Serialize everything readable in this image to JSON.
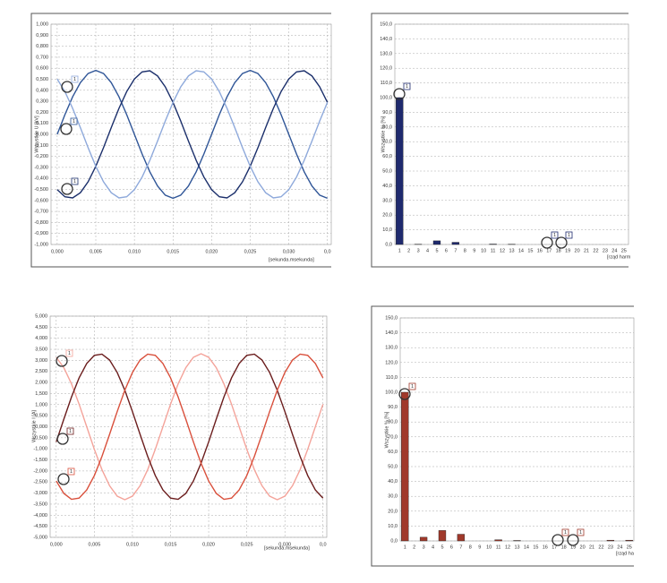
{
  "chart_data": [
    {
      "type": "line",
      "ylabel": "Wszystkie U [kV]",
      "xlabel": "[sekunda.msekunda]",
      "grid": true,
      "xlim": [
        -0.0008,
        0.0355
      ],
      "ylim": [
        -1,
        1
      ],
      "xticks": [
        {
          "value": 0,
          "label": "0,000"
        },
        {
          "value": 0.005,
          "label": "0,005"
        },
        {
          "value": 0.01,
          "label": "0,010"
        },
        {
          "value": 0.015,
          "label": "0,015"
        },
        {
          "value": 0.02,
          "label": "0,020"
        },
        {
          "value": 0.025,
          "label": "0,025"
        },
        {
          "value": 0.03,
          "label": "0,030"
        },
        {
          "value": 0.035,
          "label": "0,0"
        }
      ],
      "yticks": [
        {
          "value": 1,
          "label": "1,000"
        },
        {
          "value": 0.9,
          "label": "0,900"
        },
        {
          "value": 0.8,
          "label": "0,800"
        },
        {
          "value": 0.7,
          "label": "0,700"
        },
        {
          "value": 0.6,
          "label": "0,600"
        },
        {
          "value": 0.5,
          "label": "0,500"
        },
        {
          "value": 0.4,
          "label": "0,400"
        },
        {
          "value": 0.3,
          "label": "0,300"
        },
        {
          "value": 0.2,
          "label": "0,200"
        },
        {
          "value": 0.1,
          "label": "0,100"
        },
        {
          "value": 0,
          "label": "0,000"
        },
        {
          "value": -0.1,
          "label": "-0,100"
        },
        {
          "value": -0.2,
          "label": "-0,200"
        },
        {
          "value": -0.3,
          "label": "-0,300"
        },
        {
          "value": -0.4,
          "label": "-0,400"
        },
        {
          "value": -0.5,
          "label": "-0,500"
        },
        {
          "value": -0.6,
          "label": "-0,600"
        },
        {
          "value": -0.7,
          "label": "-0,700"
        },
        {
          "value": -0.8,
          "label": "-0,800"
        },
        {
          "value": -0.9,
          "label": "-0,900"
        },
        {
          "value": -1,
          "label": "-1,000"
        }
      ],
      "x": [
        0,
        0.001,
        0.002,
        0.003,
        0.004,
        0.005,
        0.006,
        0.007,
        0.008,
        0.009,
        0.01,
        0.011,
        0.012,
        0.013,
        0.014,
        0.015,
        0.016,
        0.017,
        0.018,
        0.019,
        0.02,
        0.021,
        0.022,
        0.023,
        0.024,
        0.025,
        0.026,
        0.027,
        0.028,
        0.029,
        0.03,
        0.031,
        0.032,
        0.033,
        0.034,
        0.035
      ],
      "series": [
        {
          "color": "#2f5597",
          "values": [
            0,
            0.179,
            0.341,
            0.469,
            0.552,
            0.58,
            0.552,
            0.469,
            0.341,
            0.179,
            0,
            -0.179,
            -0.341,
            -0.469,
            -0.552,
            -0.58,
            -0.552,
            -0.469,
            -0.341,
            -0.179,
            0,
            0.179,
            0.341,
            0.469,
            0.552,
            0.58,
            0.552,
            0.469,
            0.341,
            0.179,
            0,
            -0.179,
            -0.341,
            -0.469,
            -0.552,
            -0.58
          ]
        },
        {
          "color": "#1b2f6b",
          "values": [
            -0.502,
            -0.567,
            -0.577,
            -0.53,
            -0.431,
            -0.29,
            -0.121,
            0.061,
            0.236,
            0.388,
            0.502,
            0.567,
            0.577,
            0.53,
            0.431,
            0.29,
            0.121,
            -0.061,
            -0.236,
            -0.388,
            -0.502,
            -0.567,
            -0.577,
            -0.53,
            -0.431,
            -0.29,
            -0.121,
            0.061,
            0.236,
            0.388,
            0.502,
            0.567,
            0.577,
            0.53,
            0.431,
            0.29
          ]
        },
        {
          "color": "#8ea9db",
          "values": [
            0.502,
            0.388,
            0.236,
            0.061,
            -0.121,
            -0.29,
            -0.431,
            -0.53,
            -0.577,
            -0.567,
            -0.502,
            -0.388,
            -0.236,
            -0.061,
            0.121,
            0.29,
            0.431,
            0.53,
            0.577,
            0.567,
            0.502,
            0.388,
            0.236,
            0.061,
            -0.121,
            -0.29,
            -0.431,
            -0.53,
            -0.577,
            -0.567,
            -0.502,
            -0.388,
            -0.236,
            -0.061,
            0.121,
            0.29
          ]
        }
      ],
      "markers": [
        "1",
        "1",
        "1"
      ]
    },
    {
      "type": "bar",
      "ylabel": "Wszystkie % [%]",
      "xlabel": "[rząd harm",
      "grid": true,
      "color": "#1f2a6e",
      "ylim": [
        0,
        150
      ],
      "yticks": [
        {
          "value": 150,
          "label": "150,0"
        },
        {
          "value": 140,
          "label": "140,0"
        },
        {
          "value": 130,
          "label": "130,0"
        },
        {
          "value": 120,
          "label": "120,0"
        },
        {
          "value": 110,
          "label": "110,0"
        },
        {
          "value": 100,
          "label": "100,0"
        },
        {
          "value": 90,
          "label": "90,0"
        },
        {
          "value": 80,
          "label": "80,0"
        },
        {
          "value": 70,
          "label": "70,0"
        },
        {
          "value": 60,
          "label": "60,0"
        },
        {
          "value": 50,
          "label": "50,0"
        },
        {
          "value": 40,
          "label": "40,0"
        },
        {
          "value": 30,
          "label": "30,0"
        },
        {
          "value": 20,
          "label": "20,0"
        },
        {
          "value": 10,
          "label": "10,0"
        },
        {
          "value": 0,
          "label": "0,0"
        }
      ],
      "categories": [
        "1",
        "2",
        "3",
        "4",
        "5",
        "6",
        "7",
        "8",
        "9",
        "10",
        "11",
        "12",
        "13",
        "14",
        "15",
        "16",
        "17",
        "18",
        "19",
        "20",
        "21",
        "22",
        "23",
        "24",
        "25"
      ],
      "values": [
        100,
        0,
        0.2,
        0,
        2.5,
        0,
        1.5,
        0,
        0,
        0,
        0.3,
        0,
        0.2,
        0,
        0,
        0,
        0,
        0,
        0,
        0,
        0,
        0,
        0,
        0,
        0
      ],
      "markers": [
        "1",
        "1",
        "1"
      ]
    },
    {
      "type": "line",
      "ylabel": "Wszystkie I [A]",
      "xlabel": "[sekunda.msekunda]",
      "grid": true,
      "xlim": [
        -0.0008,
        0.0355
      ],
      "ylim": [
        -5,
        5
      ],
      "xticks": [
        {
          "value": 0,
          "label": "0,000"
        },
        {
          "value": 0.005,
          "label": "0,005"
        },
        {
          "value": 0.01,
          "label": "0,010"
        },
        {
          "value": 0.015,
          "label": "0,015"
        },
        {
          "value": 0.02,
          "label": "0,020"
        },
        {
          "value": 0.025,
          "label": "0,025"
        },
        {
          "value": 0.03,
          "label": "0,030"
        },
        {
          "value": 0.035,
          "label": "0,0"
        }
      ],
      "yticks": [
        {
          "value": 5,
          "label": "5,000"
        },
        {
          "value": 4.5,
          "label": "4,500"
        },
        {
          "value": 4,
          "label": "4,000"
        },
        {
          "value": 3.5,
          "label": "3,500"
        },
        {
          "value": 3,
          "label": "3,000"
        },
        {
          "value": 2.5,
          "label": "2,500"
        },
        {
          "value": 2,
          "label": "2,000"
        },
        {
          "value": 1.5,
          "label": "1,500"
        },
        {
          "value": 1,
          "label": "1,000"
        },
        {
          "value": 0.5,
          "label": "0,500"
        },
        {
          "value": 0,
          "label": "0,000"
        },
        {
          "value": -0.5,
          "label": "-0,500"
        },
        {
          "value": -1,
          "label": "-1,000"
        },
        {
          "value": -1.5,
          "label": "-1,500"
        },
        {
          "value": -2,
          "label": "-2,000"
        },
        {
          "value": -2.5,
          "label": "-2,500"
        },
        {
          "value": -3,
          "label": "-3,000"
        },
        {
          "value": -3.5,
          "label": "-3,500"
        },
        {
          "value": -4,
          "label": "-4,000"
        },
        {
          "value": -4.5,
          "label": "-4,500"
        },
        {
          "value": -5,
          "label": "-5,000"
        }
      ],
      "x": [
        0,
        0.001,
        0.002,
        0.003,
        0.004,
        0.005,
        0.006,
        0.007,
        0.008,
        0.009,
        0.01,
        0.011,
        0.012,
        0.013,
        0.014,
        0.015,
        0.016,
        0.017,
        0.018,
        0.019,
        0.02,
        0.021,
        0.022,
        0.023,
        0.024,
        0.025,
        0.026,
        0.027,
        0.028,
        0.029,
        0.03,
        0.031,
        0.032,
        0.033,
        0.034,
        0.035
      ],
      "series": [
        {
          "color": "#f4a39a",
          "values": [
            3.138,
            2.67,
            1.94,
            1.02,
            0,
            -1.02,
            -1.94,
            -2.67,
            -3.138,
            -3.3,
            -3.138,
            -2.67,
            -1.94,
            -1.02,
            0,
            1.02,
            1.94,
            2.67,
            3.138,
            3.3,
            3.138,
            2.67,
            1.94,
            1.02,
            0,
            -1.02,
            -1.94,
            -2.67,
            -3.138,
            -3.3,
            -3.138,
            -2.67,
            -1.94,
            -1.02,
            0,
            1.02
          ]
        },
        {
          "color": "#6b1d1d",
          "values": [
            -0.686,
            0.345,
            1.342,
            2.208,
            2.858,
            3.228,
            3.282,
            3.015,
            2.452,
            1.65,
            0.686,
            -0.345,
            -1.342,
            -2.208,
            -2.858,
            -3.228,
            -3.282,
            -3.015,
            -2.452,
            -1.65,
            -0.686,
            0.345,
            1.342,
            2.208,
            2.858,
            3.228,
            3.282,
            3.015,
            2.452,
            1.65,
            0.686,
            -0.345,
            -1.342,
            -2.208,
            -2.858,
            -3.228
          ]
        },
        {
          "color": "#d9503c",
          "values": [
            -2.452,
            -3.015,
            -3.282,
            -3.228,
            -2.858,
            -2.208,
            -1.342,
            -0.345,
            0.686,
            1.65,
            2.452,
            3.015,
            3.282,
            3.228,
            2.858,
            2.208,
            1.342,
            0.345,
            -0.686,
            -1.65,
            -2.452,
            -3.015,
            -3.282,
            -3.228,
            -2.858,
            -2.208,
            -1.342,
            -0.345,
            0.686,
            1.65,
            2.452,
            3.015,
            3.282,
            3.228,
            2.858,
            2.208
          ]
        }
      ],
      "markers": [
        "1",
        "1",
        "1"
      ]
    },
    {
      "type": "bar",
      "ylabel": "Wszystkie % [%]",
      "xlabel": "[rząd ha",
      "grid": true,
      "color": "#a0392b",
      "ylim": [
        0,
        150
      ],
      "yticks": [
        {
          "value": 150,
          "label": "150,0"
        },
        {
          "value": 140,
          "label": "140,0"
        },
        {
          "value": 130,
          "label": "130,0"
        },
        {
          "value": 120,
          "label": "120,0"
        },
        {
          "value": 110,
          "label": "110,0"
        },
        {
          "value": 100,
          "label": "100,0"
        },
        {
          "value": 90,
          "label": "90,0"
        },
        {
          "value": 80,
          "label": "80,0"
        },
        {
          "value": 70,
          "label": "70,0"
        },
        {
          "value": 60,
          "label": "60,0"
        },
        {
          "value": 50,
          "label": "50,0"
        },
        {
          "value": 40,
          "label": "40,0"
        },
        {
          "value": 30,
          "label": "30,0"
        },
        {
          "value": 20,
          "label": "20,0"
        },
        {
          "value": 10,
          "label": "10,0"
        },
        {
          "value": 0,
          "label": "0,0"
        }
      ],
      "categories": [
        "1",
        "2",
        "3",
        "4",
        "5",
        "6",
        "7",
        "8",
        "9",
        "10",
        "11",
        "12",
        "13",
        "14",
        "15",
        "16",
        "17",
        "18",
        "19",
        "20",
        "21",
        "22",
        "23",
        "24",
        "25"
      ],
      "values": [
        100,
        0,
        2.5,
        0,
        7,
        0,
        4.5,
        0,
        0,
        0,
        0.8,
        0,
        0.3,
        0,
        0,
        0,
        0,
        0,
        0,
        0,
        0,
        0,
        0.5,
        0,
        0.5
      ],
      "markers": [
        "1",
        "1",
        "1"
      ]
    }
  ]
}
